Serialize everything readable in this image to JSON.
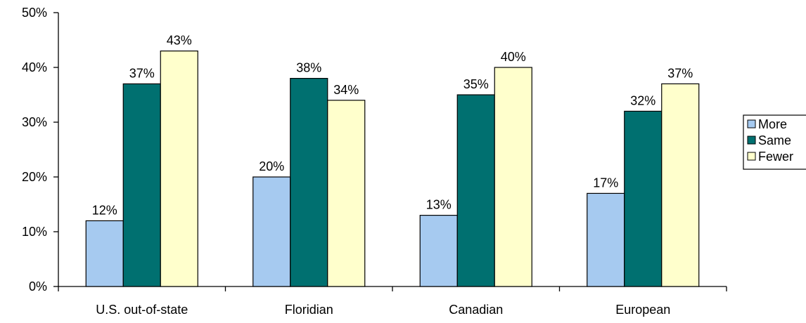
{
  "chart_data": {
    "type": "bar",
    "title": "",
    "xlabel": "",
    "ylabel": "",
    "categories": [
      "U.S. out-of-state",
      "Floridian",
      "Canadian",
      "European"
    ],
    "series": [
      {
        "name": "More",
        "values": [
          12,
          20,
          13,
          17
        ],
        "color": "#A6CAF0",
        "labels": [
          "12%",
          "20%",
          "13%",
          "17%"
        ]
      },
      {
        "name": "Same",
        "values": [
          37,
          38,
          35,
          32
        ],
        "color": "#007070",
        "labels": [
          "37%",
          "38%",
          "35%",
          "32%"
        ]
      },
      {
        "name": "Fewer",
        "values": [
          43,
          34,
          40,
          37
        ],
        "color": "#FFFFCC",
        "labels": [
          "43%",
          "34%",
          "40%",
          "37%"
        ]
      }
    ],
    "ylim": [
      0,
      50
    ],
    "yticks": [
      0,
      10,
      20,
      30,
      40,
      50
    ],
    "ytick_labels": [
      "0%",
      "10%",
      "20%",
      "30%",
      "40%",
      "50%"
    ],
    "grid": false,
    "legend_position": "right"
  }
}
